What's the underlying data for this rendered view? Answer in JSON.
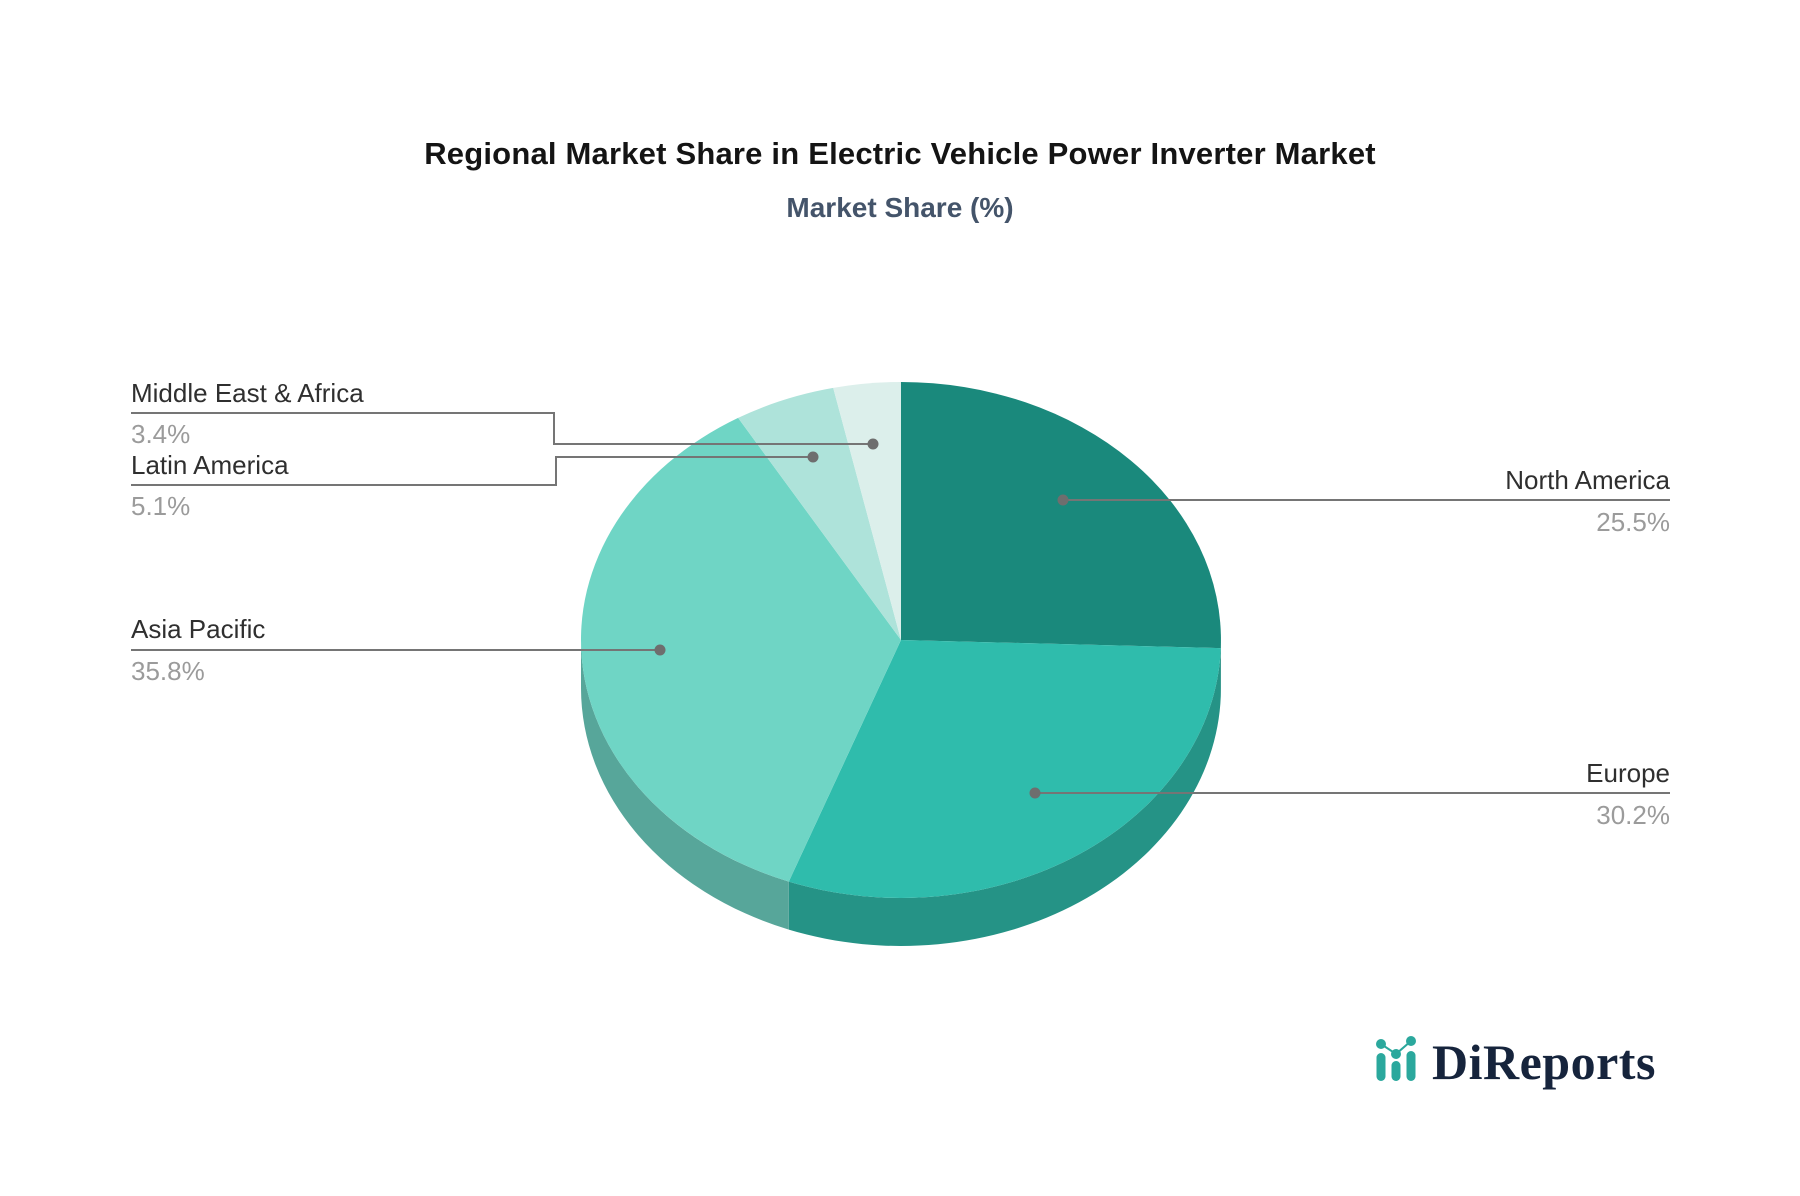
{
  "title": "Regional Market Share in Electric Vehicle Power Inverter Market",
  "subtitle": "Market Share (%)",
  "logo": {
    "text": "DiReports"
  },
  "styles": {
    "leader_line": "#757575",
    "leader_dot": "#6e6e6e",
    "label_color": "#2f2f2f",
    "pct_color": "#9b9b9b",
    "title_color": "#141414",
    "subtitle_color": "#44546a",
    "logo_navy": "#16243c",
    "logo_teal": "#2ba89d"
  },
  "chart_data": {
    "type": "pie",
    "title": "Regional Market Share in Electric Vehicle Power Inverter Market",
    "subtitle": "Market Share (%)",
    "labels": [
      "North America",
      "Europe",
      "Asia Pacific",
      "Latin America",
      "Middle East & Africa"
    ],
    "values": [
      25.5,
      30.2,
      35.8,
      5.1,
      3.4
    ],
    "value_labels": [
      "25.5%",
      "30.2%",
      "35.8%",
      "5.1%",
      "3.4%"
    ],
    "colors": [
      "#1a897c",
      "#2fbcac",
      "#6fd5c5",
      "#aee3da",
      "#dcefeb"
    ],
    "start_angle_deg": 0,
    "direction": "clockwise",
    "effect_3d": true,
    "legend_position": "callout-labels",
    "grid": false
  }
}
